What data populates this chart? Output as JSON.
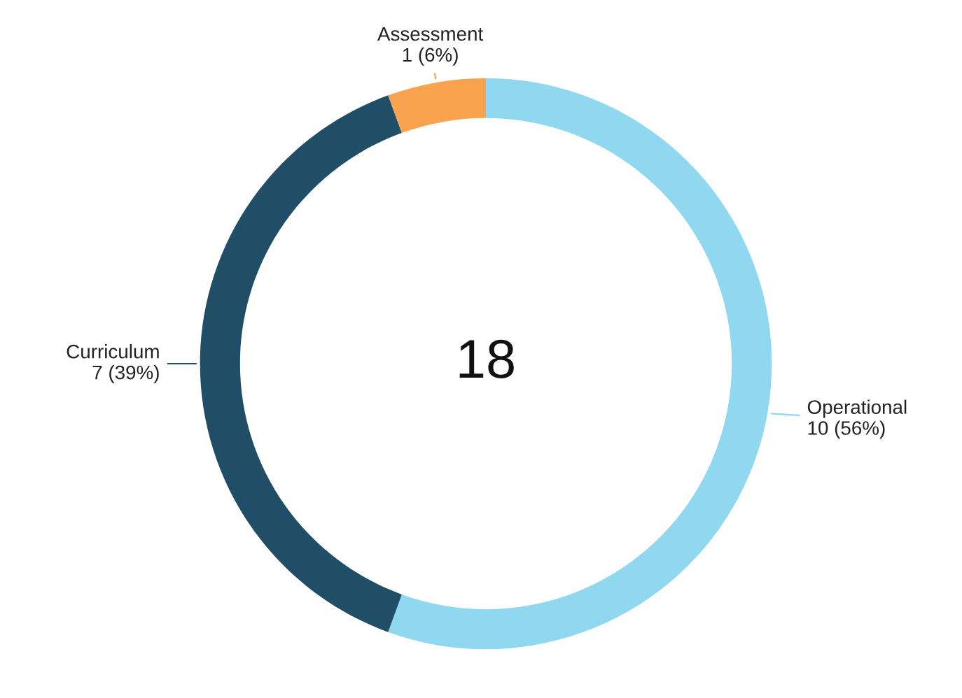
{
  "chart_data": {
    "type": "donut",
    "categories": [
      "Operational",
      "Curriculum",
      "Assessment"
    ],
    "values": [
      10,
      7,
      1
    ],
    "value_labels": [
      "10 (56%)",
      "7 (39%)",
      "1 (6%)"
    ],
    "colors": [
      "#8fd8ef",
      "#1f4e66",
      "#f9a34f"
    ],
    "annotations": [
      "18"
    ],
    "legend": false
  }
}
